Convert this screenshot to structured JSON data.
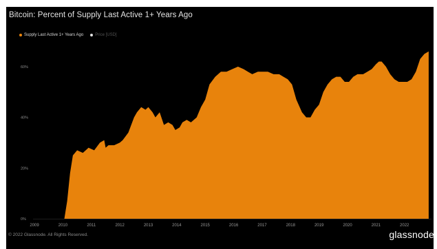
{
  "title": "Bitcoin: Percent of Supply Last Active 1+ Years Ago",
  "footer": "© 2022 Glassnode. All Rights Reserved.",
  "logo": "glassnode",
  "colors": {
    "series": "#e8830c",
    "background": "#000000",
    "price_dot": "#e0e0e0"
  },
  "chart_data": {
    "type": "area",
    "legend": [
      {
        "name": "Supply Last Active 1+ Years Ago",
        "color": "#e8830c"
      },
      {
        "name": "Price [USD]",
        "color": "#e0e0e0"
      }
    ],
    "legend_position": "top-left",
    "x_ticks": [
      "2009",
      "2010",
      "2011",
      "2012",
      "2013",
      "2014",
      "2015",
      "2016",
      "2017",
      "2018",
      "2019",
      "2020",
      "2021",
      "2022"
    ],
    "y_ticks": [
      {
        "value": 0,
        "label": "0%"
      },
      {
        "value": 20,
        "label": "20%"
      },
      {
        "value": 40,
        "label": "40%"
      },
      {
        "value": 60,
        "label": "60%"
      }
    ],
    "xlim": [
      2008.95,
      2022.95
    ],
    "ylim": [
      0,
      70
    ],
    "grid": false,
    "series": [
      {
        "name": "Supply Last Active 1+ Years Ago",
        "x": [
          2010.05,
          2010.15,
          2010.25,
          2010.35,
          2010.5,
          2010.7,
          2010.9,
          2011.1,
          2011.3,
          2011.45,
          2011.5,
          2011.6,
          2011.8,
          2012.0,
          2012.1,
          2012.3,
          2012.5,
          2012.6,
          2012.75,
          2012.9,
          2013.0,
          2013.15,
          2013.25,
          2013.4,
          2013.55,
          2013.7,
          2013.85,
          2013.95,
          2014.1,
          2014.2,
          2014.35,
          2014.5,
          2014.7,
          2014.85,
          2015.0,
          2015.15,
          2015.35,
          2015.55,
          2015.75,
          2015.95,
          2016.15,
          2016.35,
          2016.5,
          2016.65,
          2016.85,
          2017.0,
          2017.2,
          2017.4,
          2017.6,
          2017.75,
          2017.9,
          2018.05,
          2018.2,
          2018.4,
          2018.55,
          2018.7,
          2018.85,
          2019.0,
          2019.15,
          2019.3,
          2019.45,
          2019.6,
          2019.75,
          2019.9,
          2020.05,
          2020.2,
          2020.35,
          2020.55,
          2020.7,
          2020.85,
          2021.0,
          2021.1,
          2021.2,
          2021.35,
          2021.5,
          2021.65,
          2021.8,
          2021.95,
          2022.1,
          2022.25,
          2022.4,
          2022.55,
          2022.7,
          2022.85
        ],
        "y": [
          0,
          7,
          18,
          25,
          27,
          26,
          28,
          27,
          30,
          31,
          28,
          29,
          29,
          30,
          31,
          34,
          40,
          42,
          44,
          43,
          44,
          42,
          40,
          42,
          37,
          38,
          37,
          35,
          36,
          38,
          39,
          38,
          40,
          44,
          47,
          53,
          56,
          58,
          58,
          59,
          60,
          59,
          58,
          57,
          58,
          58,
          58,
          57,
          57,
          56,
          55,
          53,
          47,
          42,
          40,
          40,
          43,
          45,
          50,
          53,
          55,
          56,
          56,
          54,
          54,
          56,
          57,
          57,
          58,
          59,
          61,
          62,
          62,
          60,
          57,
          55,
          54,
          54,
          54,
          55,
          58,
          63,
          65,
          66
        ]
      }
    ]
  }
}
